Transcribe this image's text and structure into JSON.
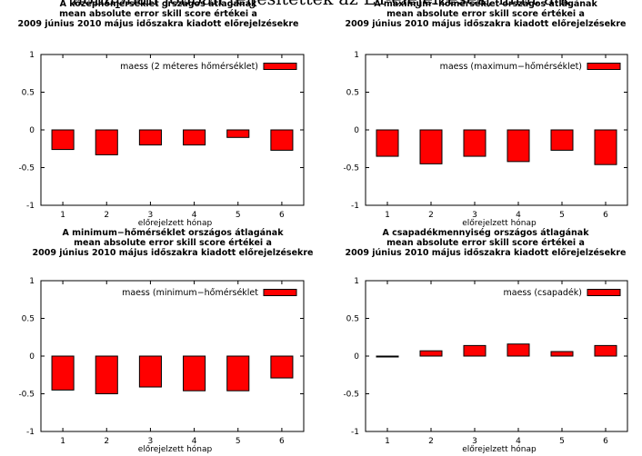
{
  "top_text": "honapban jobban teljesítettek az ET-elejelzések, mint a k",
  "colors": {
    "bar_fill": "#ff0000",
    "bar_stroke": "#000000",
    "axis": "#000000"
  },
  "chart_data": [
    {
      "type": "bar",
      "title_lines": [
        "A középhőmérséklet országos átlagának",
        "mean absolute error skill score értékei a",
        "2009 június 2010 május időszakra kiadott előrejelzésekre"
      ],
      "legend": "maess (2 méteres hőmérséklet)",
      "xlabel": "előrejelzett hónap",
      "categories": [
        "1",
        "2",
        "3",
        "4",
        "5",
        "6"
      ],
      "values": [
        -0.26,
        -0.33,
        -0.2,
        -0.2,
        -0.1,
        -0.27
      ],
      "ylim": [
        -1,
        1
      ],
      "yticks": [
        "1",
        "0.5",
        "0",
        "-0.5",
        "-1"
      ]
    },
    {
      "type": "bar",
      "title_lines": [
        "A maximum−hőmérséklet országos átlagának",
        "mean absolute error skill score értékei a",
        "2009 június 2010 május időszakra kiadott előrejelzésekre"
      ],
      "legend": "maess (maximum−hőmérséklet)",
      "xlabel": "előrejelzett hónap",
      "categories": [
        "1",
        "2",
        "3",
        "4",
        "5",
        "6"
      ],
      "values": [
        -0.35,
        -0.45,
        -0.35,
        -0.42,
        -0.27,
        -0.46
      ],
      "ylim": [
        -1,
        1
      ],
      "yticks": [
        "1",
        "0.5",
        "0",
        "-0.5",
        "-1"
      ]
    },
    {
      "type": "bar",
      "title_lines": [
        "A minimum−hőmérséklet országos átlagának",
        "mean absolute error skill score értékei a",
        "2009 június 2010 május időszakra kiadott előrejelzésekre"
      ],
      "legend": "maess (minimum−hőmérséklet",
      "xlabel": "előrejelzett hónap",
      "categories": [
        "1",
        "2",
        "3",
        "4",
        "5",
        "6"
      ],
      "values": [
        -0.45,
        -0.5,
        -0.41,
        -0.46,
        -0.46,
        -0.29
      ],
      "ylim": [
        -1,
        1
      ],
      "yticks": [
        "1",
        "0.5",
        "0",
        "-0.5",
        "-1"
      ]
    },
    {
      "type": "bar",
      "title_lines": [
        "A csapadékmennyiség országos átlagának",
        "mean absolute error skill score értékei a",
        "2009 június 2010 május időszakra kiadott előrejelzésekre"
      ],
      "legend": "maess (csapadék)",
      "xlabel": "előrejelzett hónap",
      "categories": [
        "1",
        "2",
        "3",
        "4",
        "5",
        "6"
      ],
      "values": [
        0.0,
        0.07,
        0.14,
        0.16,
        0.06,
        0.14
      ],
      "ylim": [
        -1,
        1
      ],
      "yticks": [
        "1",
        "0.5",
        "0",
        "-0.5",
        "-1"
      ]
    }
  ]
}
